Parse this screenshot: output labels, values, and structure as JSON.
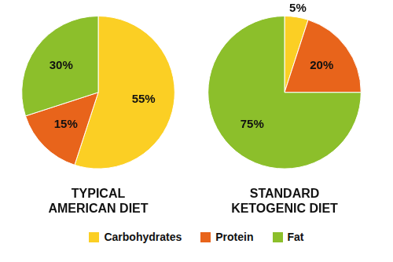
{
  "chart_data": [
    {
      "type": "pie",
      "title": "TYPICAL AMERICAN DIET",
      "categories": [
        "Carbohydrates",
        "Protein",
        "Fat"
      ],
      "values": [
        55,
        15,
        30
      ],
      "value_labels": [
        "55%",
        "15%",
        "30%"
      ],
      "colors": [
        "#fbcf24",
        "#e8641b",
        "#8cbf2b"
      ],
      "data_labels": true,
      "legend": "bottom"
    },
    {
      "type": "pie",
      "title": "STANDARD KETOGENIC DIET",
      "categories": [
        "Carbohydrates",
        "Protein",
        "Fat"
      ],
      "values": [
        5,
        20,
        75
      ],
      "value_labels": [
        "5%",
        "20%",
        "75%"
      ],
      "colors": [
        "#fbcf24",
        "#e8641b",
        "#8cbf2b"
      ],
      "data_labels": true,
      "legend": "bottom"
    }
  ]
}
